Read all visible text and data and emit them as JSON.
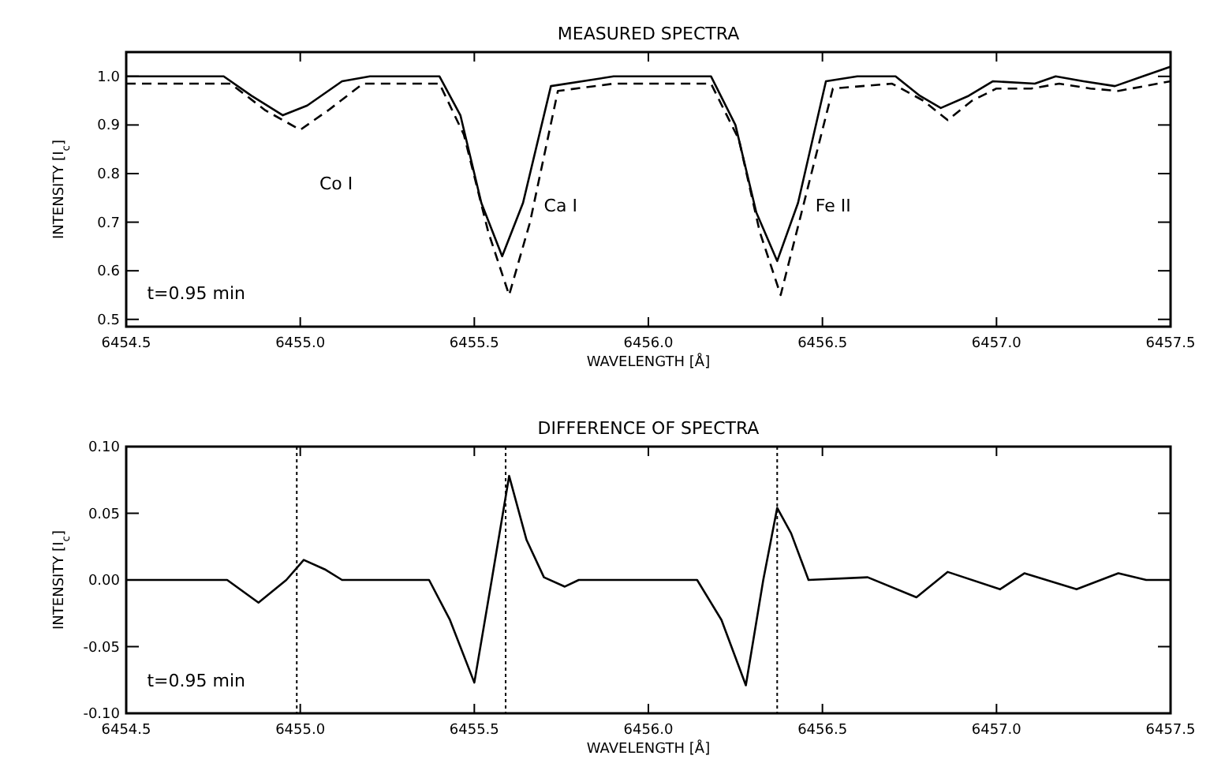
{
  "chart_data": [
    {
      "type": "line",
      "title": "MEASURED SPECTRA",
      "xlabel": "WAVELENGTH [Å]",
      "ylabel": "INTENSITY [I$_{c}$]",
      "xlim": [
        6454.5,
        6457.5
      ],
      "xticks": [
        {
          "value": 6454.5,
          "label": "6454.5"
        },
        {
          "value": 6455,
          "label": "6455.0"
        },
        {
          "value": 6455.5,
          "label": "6455.5"
        },
        {
          "value": 6456,
          "label": "6456.0"
        },
        {
          "value": 6456.5,
          "label": "6456.5"
        },
        {
          "value": 6457,
          "label": "6457.0"
        },
        {
          "value": 6457.5,
          "label": "6457.5"
        }
      ],
      "ylim": [
        0.485,
        1.05
      ],
      "yticks": [
        0.5,
        0.6,
        0.7,
        0.8,
        0.9,
        {
          "value": 1.0,
          "label": "1.0"
        }
      ],
      "grid": false,
      "annotations": [
        "Co I",
        "Ca I",
        "Fe II",
        "t=0.95 min"
      ],
      "series": [
        {
          "color": "#000000",
          "line_style": "solid",
          "x": [
            6454.5,
            6454.78,
            6454.86,
            6454.95,
            6455.02,
            6455.12,
            6455.2,
            6455.4,
            6455.46,
            6455.52,
            6455.58,
            6455.64,
            6455.72,
            6455.9,
            6456.18,
            6456.25,
            6456.31,
            6456.37,
            6456.43,
            6456.51,
            6456.6,
            6456.71,
            6456.78,
            6456.84,
            6456.92,
            6456.99,
            6457.11,
            6457.17,
            6457.25,
            6457.34,
            6457.42,
            6457.5
          ],
          "values": [
            1.0,
            1.0,
            0.96,
            0.92,
            0.94,
            0.99,
            1.0,
            1.0,
            0.92,
            0.74,
            0.63,
            0.74,
            0.98,
            1.0,
            1.0,
            0.9,
            0.72,
            0.62,
            0.74,
            0.99,
            1.0,
            1.0,
            0.96,
            0.935,
            0.96,
            0.99,
            0.985,
            1.0,
            0.99,
            0.98,
            1.0,
            1.02
          ]
        },
        {
          "color": "#000000",
          "line_style": "dashed",
          "x": [
            6454.5,
            6454.8,
            6454.9,
            6455.0,
            6455.08,
            6455.18,
            6455.3,
            6455.4,
            6455.47,
            6455.54,
            6455.6,
            6455.66,
            6455.74,
            6455.9,
            6456.18,
            6456.26,
            6456.32,
            6456.38,
            6456.44,
            6456.53,
            6456.7,
            6456.79,
            6456.86,
            6456.93,
            6457.0,
            6457.1,
            6457.18,
            6457.27,
            6457.35,
            6457.5
          ],
          "values": [
            0.985,
            0.985,
            0.93,
            0.89,
            0.93,
            0.985,
            0.985,
            0.985,
            0.88,
            0.68,
            0.55,
            0.7,
            0.97,
            0.985,
            0.985,
            0.87,
            0.68,
            0.55,
            0.72,
            0.975,
            0.985,
            0.95,
            0.91,
            0.95,
            0.975,
            0.975,
            0.985,
            0.975,
            0.97,
            0.99
          ]
        }
      ]
    },
    {
      "type": "line",
      "title": "DIFFERENCE OF SPECTRA",
      "xlabel": "WAVELENGTH [Å]",
      "ylabel": "INTENSITY [I$_{c}$]",
      "xlim": [
        6454.5,
        6457.5
      ],
      "xticks": [
        {
          "value": 6454.5,
          "label": "6454.5"
        },
        {
          "value": 6455,
          "label": "6455.0"
        },
        {
          "value": 6455.5,
          "label": "6455.5"
        },
        {
          "value": 6456,
          "label": "6456.0"
        },
        {
          "value": 6456.5,
          "label": "6456.5"
        },
        {
          "value": 6457,
          "label": "6457.0"
        },
        {
          "value": 6457.5,
          "label": "6457.5"
        }
      ],
      "ylim": [
        -0.1,
        0.1
      ],
      "yticks": [
        {
          "value": -0.1,
          "label": "-0.10"
        },
        {
          "value": -0.05,
          "label": "-0.05"
        },
        {
          "value": 0,
          "label": "0.00"
        },
        {
          "value": 0.05,
          "label": "0.05"
        },
        {
          "value": 0.1,
          "label": "0.10"
        }
      ],
      "grid": false,
      "annotations": [
        "t=0.95 min"
      ],
      "ref_lines": [
        {
          "axis": "x",
          "value": 6454.99,
          "line_style": "dotted"
        },
        {
          "axis": "x",
          "value": 6455.59,
          "line_style": "dotted"
        },
        {
          "axis": "x",
          "value": 6456.37,
          "line_style": "dotted"
        }
      ],
      "series": [
        {
          "color": "#000000",
          "line_style": "solid",
          "x": [
            6454.5,
            6454.79,
            6454.88,
            6454.96,
            6455.01,
            6455.07,
            6455.12,
            6455.37,
            6455.43,
            6455.5,
            6455.55,
            6455.6,
            6455.65,
            6455.7,
            6455.76,
            6455.8,
            6456.14,
            6456.21,
            6456.28,
            6456.33,
            6456.37,
            6456.41,
            6456.46,
            6456.63,
            6456.77,
            6456.86,
            6457.01,
            6457.08,
            6457.23,
            6457.35,
            6457.43,
            6457.5
          ],
          "values": [
            0,
            0,
            -0.017,
            0,
            0.015,
            0.008,
            0,
            0,
            -0.03,
            -0.077,
            0,
            0.078,
            0.03,
            0.002,
            -0.005,
            0,
            0,
            -0.03,
            -0.079,
            0,
            0.054,
            0.035,
            0,
            0.002,
            -0.013,
            0.006,
            -0.007,
            0.005,
            -0.007,
            0.005,
            0,
            0
          ]
        }
      ]
    }
  ]
}
